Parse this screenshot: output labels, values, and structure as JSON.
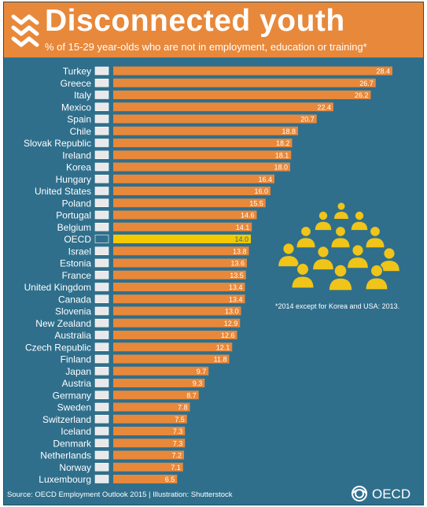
{
  "header": {
    "title": "Disconnected youth",
    "subtitle": "% of 15-29 year-olds who are not in employment, education or training*"
  },
  "note": "*2014 except for Korea and USA: 2013.",
  "footer": {
    "source": "Source: OECD Employment Outlook 2015 | Illustration: Shutterstock",
    "brand": "OECD"
  },
  "colors": {
    "background": "#2f6f8c",
    "bar": "#e8883a",
    "highlight_bar": "#f5c900",
    "header": "#e8883a",
    "figure": "#f0c419"
  },
  "chart_data": {
    "type": "bar",
    "orientation": "horizontal",
    "title": "Disconnected youth",
    "subtitle": "% of 15-29 year-olds who are not in employment, education or training*",
    "categories": [
      "Turkey",
      "Greece",
      "Italy",
      "Mexico",
      "Spain",
      "Chile",
      "Slovak Republic",
      "Ireland",
      "Korea",
      "Hungary",
      "United States",
      "Poland",
      "Portugal",
      "Belgium",
      "OECD",
      "Israel",
      "Estonia",
      "France",
      "United Kingdom",
      "Canada",
      "Slovenia",
      "New Zealand",
      "Australia",
      "Czech Republic",
      "Finland",
      "Japan",
      "Austria",
      "Germany",
      "Sweden",
      "Switzerland",
      "Iceland",
      "Denmark",
      "Netherlands",
      "Norway",
      "Luxembourg"
    ],
    "values": [
      28.4,
      26.7,
      26.2,
      22.4,
      20.7,
      18.8,
      18.2,
      18.1,
      18.0,
      16.4,
      16.0,
      15.5,
      14.6,
      14.1,
      14.0,
      13.8,
      13.6,
      13.5,
      13.4,
      13.4,
      13.0,
      12.9,
      12.6,
      12.1,
      11.8,
      9.7,
      9.3,
      8.7,
      7.8,
      7.5,
      7.3,
      7.3,
      7.2,
      7.1,
      6.5
    ],
    "value_labels": [
      "28.4",
      "26.7",
      "26.2",
      "22.4",
      "20.7",
      "18.8",
      "18.2",
      "18.1",
      "18.0",
      "16.4",
      "16.0",
      "15.5",
      "14.6",
      "14.1",
      "14.0",
      "13.8",
      "13.6",
      "13.5",
      "13.4",
      "13.4",
      "13.0",
      "12.9",
      "12.6",
      "12.1",
      "11.8",
      "9.7",
      "9.3",
      "8.7",
      "7.8",
      "7.5",
      "7.3",
      "7.3",
      "7.2",
      "7.1",
      "6.5"
    ],
    "highlight": "OECD",
    "xlim": [
      0,
      28.4
    ],
    "grid": false,
    "legend": "none"
  }
}
